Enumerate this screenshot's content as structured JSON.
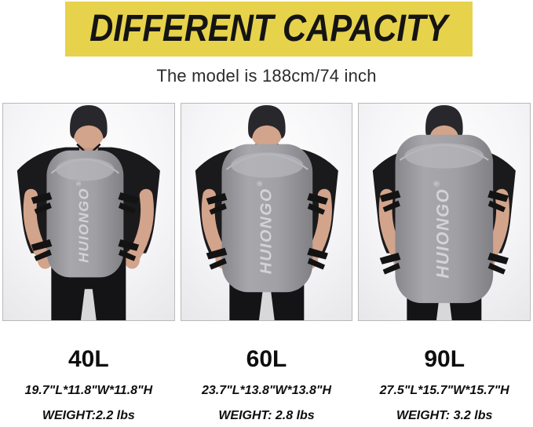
{
  "header": {
    "title": "DIFFERENT CAPACITY",
    "banner_color": "#e7d24b",
    "banner_text_color": "#141414"
  },
  "subtitle": "The model is 188cm/74 inch",
  "brand": {
    "logo": "HUIONGO",
    "registered": "®"
  },
  "variants": [
    {
      "capacity": "40L",
      "dimensions": "19.7\"L*11.8\"W*11.8\"H",
      "weight": "WEIGHT:2.2 lbs"
    },
    {
      "capacity": "60L",
      "dimensions": "23.7\"L*13.8\"W*13.8\"H",
      "weight": "WEIGHT: 2.8 lbs"
    },
    {
      "capacity": "90L",
      "dimensions": "27.5\"L*15.7\"W*15.7\"H",
      "weight": "WEIGHT: 3.2 lbs"
    }
  ],
  "colors": {
    "bag": "#9a9a9f",
    "bag_highlight": "#b4b4b9",
    "bag_logo": "#d2d3d7",
    "straps": "#131313",
    "shirt": "#1a1a1d",
    "pants": "#141416",
    "skin": "#d2a48b",
    "hair": "#28282c",
    "photo_bg_edge": "#e7e7e9"
  }
}
